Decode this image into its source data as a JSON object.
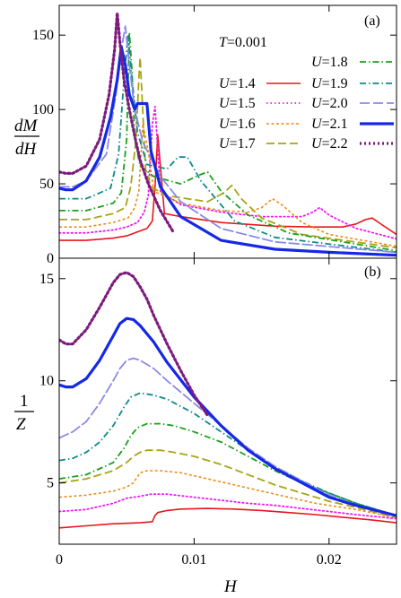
{
  "chart_data": [
    {
      "type": "line",
      "panel_label": "(a)",
      "ylabel_num": "dM",
      "ylabel_den": "dH",
      "xlabel": "",
      "xlim": [
        0,
        0.025
      ],
      "ylim": [
        0,
        170
      ],
      "yticks": [
        0,
        50,
        100,
        150
      ],
      "xticks": [
        0,
        0.01,
        0.02
      ],
      "xtick_labels": [
        "",
        "",
        ""
      ],
      "legend_title": "T=0.001",
      "legend_title_var": "T",
      "legend_title_val": "=0.001",
      "legend_placement": "top-right",
      "series": [
        {
          "name": "U=1.4",
          "var": "U",
          "val": "=1.4",
          "color": "#e8161a",
          "dash": "",
          "width": 1.6,
          "x": [
            0,
            0.002,
            0.004,
            0.005,
            0.0065,
            0.0069,
            0.0071,
            0.0073,
            0.0075,
            0.0078,
            0.009,
            0.012,
            0.016,
            0.019,
            0.021,
            0.022,
            0.0227,
            0.0232,
            0.024,
            0.025
          ],
          "y": [
            12,
            12,
            13.5,
            15,
            20,
            25,
            48,
            83,
            62,
            30,
            28,
            24,
            21.5,
            21,
            21,
            23,
            26,
            27,
            22,
            16
          ]
        },
        {
          "name": "U=1.5",
          "var": "U",
          "val": "=1.5",
          "color": "#f218f2",
          "dash": "1.5,3",
          "width": 1.8,
          "x": [
            0,
            0.002,
            0.004,
            0.005,
            0.0058,
            0.0063,
            0.0066,
            0.0069,
            0.0071,
            0.0075,
            0.009,
            0.012,
            0.015,
            0.018,
            0.0188,
            0.0193,
            0.02,
            0.022,
            0.025
          ],
          "y": [
            17,
            17,
            19,
            21,
            24,
            31,
            42,
            90,
            102,
            45,
            36,
            31,
            28,
            28,
            31,
            34,
            29,
            20,
            13
          ]
        },
        {
          "name": "U=1.6",
          "var": "U",
          "val": "=1.6",
          "color": "#f08a16",
          "dash": "3,2.5",
          "width": 1.6,
          "x": [
            0,
            0.002,
            0.004,
            0.0051,
            0.0056,
            0.0059,
            0.0062,
            0.0066,
            0.007,
            0.009,
            0.012,
            0.014,
            0.015,
            0.0158,
            0.0165,
            0.018,
            0.02,
            0.025
          ],
          "y": [
            21,
            21,
            24,
            27,
            34,
            45,
            90,
            72,
            45,
            37,
            32,
            31,
            34,
            40,
            36,
            24,
            16,
            8
          ]
        },
        {
          "name": "U=1.7",
          "var": "U",
          "val": "=1.7",
          "color": "#a8a414",
          "dash": "9,4",
          "width": 1.8,
          "x": [
            0,
            0.002,
            0.004,
            0.0049,
            0.0053,
            0.0057,
            0.0059,
            0.006,
            0.0064,
            0.0068,
            0.008,
            0.011,
            0.0122,
            0.0128,
            0.0135,
            0.015,
            0.018,
            0.025
          ],
          "y": [
            26,
            26,
            30,
            34,
            48,
            80,
            120,
            135,
            60,
            48,
            42,
            38,
            44,
            49,
            40,
            27,
            16,
            7
          ]
        },
        {
          "name": "U=1.8",
          "var": "U",
          "val": "=1.8",
          "color": "#1aa01a",
          "dash": "7,3,1.5,3",
          "width": 1.8,
          "x": [
            0,
            0.002,
            0.004,
            0.0046,
            0.005,
            0.0052,
            0.0054,
            0.0056,
            0.006,
            0.007,
            0.009,
            0.0104,
            0.011,
            0.012,
            0.014,
            0.017,
            0.025
          ],
          "y": [
            32,
            32,
            37,
            44,
            80,
            152,
            125,
            80,
            62,
            55,
            50,
            56,
            58,
            45,
            29,
            17,
            5
          ]
        },
        {
          "name": "U=1.9",
          "var": "U",
          "val": "=1.9",
          "color": "#0f8a8a",
          "dash": "7,3,1.5,3",
          "width": 1.8,
          "x": [
            0,
            0.002,
            0.0038,
            0.0044,
            0.0048,
            0.0051,
            0.0054,
            0.0058,
            0.0065,
            0.008,
            0.0088,
            0.0095,
            0.0105,
            0.013,
            0.016,
            0.025
          ],
          "y": [
            40,
            40,
            47,
            70,
            120,
            150,
            120,
            85,
            63,
            60,
            68,
            68,
            52,
            25,
            14,
            4
          ]
        },
        {
          "name": "U=2.0",
          "var": "U",
          "val": "=2.0",
          "color": "#8a8ae8",
          "dash": "11,4",
          "width": 1.8,
          "x": [
            0,
            0.001,
            0.002,
            0.0035,
            0.0042,
            0.0046,
            0.0049,
            0.0052,
            0.0056,
            0.0062,
            0.0075,
            0.009,
            0.012,
            0.016,
            0.025
          ],
          "y": [
            48,
            48,
            52,
            70,
            110,
            140,
            156,
            130,
            100,
            78,
            55,
            38,
            20,
            11,
            4
          ]
        },
        {
          "name": "U=2.1",
          "var": "U",
          "val": "=2.1",
          "color": "#1428e6",
          "dash": "",
          "width": 3.2,
          "x": [
            0,
            0.0005,
            0.001,
            0.002,
            0.003,
            0.0038,
            0.0043,
            0.0046,
            0.0049,
            0.0052,
            0.0056,
            0.0058,
            0.0065,
            0.0068,
            0.0075,
            0.009,
            0.012,
            0.016,
            0.02,
            0.025
          ],
          "y": [
            47,
            46,
            46,
            52,
            68,
            95,
            120,
            142,
            130,
            110,
            100,
            104,
            104,
            72,
            48,
            28,
            12,
            6,
            4,
            2
          ]
        },
        {
          "name": "U=2.2",
          "var": "U",
          "val": "=2.2",
          "color": "#7d1a7d",
          "dash": "2,3",
          "width": 3.2,
          "x": [
            0,
            0.0005,
            0.001,
            0.002,
            0.003,
            0.0037,
            0.0041,
            0.0043,
            0.0045,
            0.0048,
            0.0052,
            0.0056,
            0.006,
            0.0066,
            0.0075,
            0.0085
          ],
          "y": [
            58,
            57,
            57,
            62,
            80,
            110,
            140,
            165,
            145,
            120,
            100,
            82,
            66,
            50,
            32,
            17
          ]
        }
      ]
    },
    {
      "type": "line",
      "panel_label": "(b)",
      "ylabel_num": "1",
      "ylabel_den": "Z",
      "xlabel": "H",
      "xlim": [
        0,
        0.025
      ],
      "ylim": [
        2,
        16
      ],
      "yticks": [
        5,
        10,
        15
      ],
      "xticks": [
        0,
        0.01,
        0.02
      ],
      "xtick_labels": [
        "0",
        "0.01",
        "0.02"
      ],
      "series": [
        {
          "name": "U=1.4",
          "color": "#e8161a",
          "dash": "",
          "width": 1.6,
          "x": [
            0,
            0.002,
            0.004,
            0.006,
            0.0069,
            0.0071,
            0.0073,
            0.008,
            0.009,
            0.011,
            0.013,
            0.015,
            0.017,
            0.019,
            0.021,
            0.023,
            0.025
          ],
          "y": [
            2.8,
            2.9,
            3.0,
            3.05,
            3.1,
            3.4,
            3.55,
            3.65,
            3.72,
            3.75,
            3.72,
            3.65,
            3.55,
            3.45,
            3.32,
            3.2,
            3.05
          ]
        },
        {
          "name": "U=1.5",
          "color": "#f218f2",
          "dash": "1.5,3",
          "width": 1.8,
          "x": [
            0,
            0.002,
            0.004,
            0.005,
            0.006,
            0.0068,
            0.008,
            0.01,
            0.012,
            0.014,
            0.016,
            0.018,
            0.02,
            0.022,
            0.025
          ],
          "y": [
            3.6,
            3.7,
            4.0,
            4.25,
            4.35,
            4.45,
            4.45,
            4.3,
            4.15,
            4.0,
            3.9,
            3.75,
            3.6,
            3.45,
            3.25
          ]
        },
        {
          "name": "U=1.6",
          "color": "#f08a16",
          "dash": "3,2.5",
          "width": 1.6,
          "x": [
            0,
            0.002,
            0.004,
            0.005,
            0.0055,
            0.006,
            0.0065,
            0.0075,
            0.009,
            0.011,
            0.013,
            0.015,
            0.017,
            0.019,
            0.022,
            0.025
          ],
          "y": [
            4.3,
            4.4,
            4.6,
            4.8,
            5.0,
            5.5,
            5.6,
            5.6,
            5.5,
            5.2,
            4.9,
            4.6,
            4.3,
            4.0,
            3.7,
            3.3
          ]
        },
        {
          "name": "U=1.7",
          "color": "#a8a414",
          "dash": "9,4",
          "width": 1.8,
          "x": [
            0,
            0.002,
            0.004,
            0.005,
            0.0055,
            0.006,
            0.0065,
            0.0075,
            0.0085,
            0.01,
            0.012,
            0.014,
            0.016,
            0.018,
            0.02,
            0.022,
            0.025
          ],
          "y": [
            5.0,
            5.2,
            5.6,
            6.0,
            6.3,
            6.5,
            6.6,
            6.6,
            6.5,
            6.3,
            5.9,
            5.4,
            4.9,
            4.5,
            4.1,
            3.8,
            3.3
          ]
        },
        {
          "name": "U=1.8",
          "color": "#1aa01a",
          "dash": "7,3,1.5,3",
          "width": 1.8,
          "x": [
            0,
            0.002,
            0.004,
            0.0048,
            0.0053,
            0.0058,
            0.0065,
            0.0075,
            0.0085,
            0.01,
            0.012,
            0.014,
            0.016,
            0.018,
            0.02,
            0.022,
            0.025
          ],
          "y": [
            5.2,
            5.4,
            6.0,
            6.7,
            7.3,
            7.7,
            7.9,
            7.9,
            7.8,
            7.5,
            7.0,
            6.3,
            5.6,
            5.0,
            4.5,
            4.0,
            3.4
          ]
        },
        {
          "name": "U=1.9",
          "color": "#0f8a8a",
          "dash": "7,3,1.5,3",
          "width": 1.8,
          "x": [
            0,
            0.001,
            0.002,
            0.003,
            0.004,
            0.0048,
            0.0053,
            0.006,
            0.007,
            0.008,
            0.01,
            0.012,
            0.014,
            0.016,
            0.018,
            0.02,
            0.022,
            0.025
          ],
          "y": [
            6.1,
            6.2,
            6.5,
            7.0,
            7.8,
            8.7,
            9.2,
            9.4,
            9.3,
            9.1,
            8.4,
            7.5,
            6.6,
            5.8,
            5.1,
            4.5,
            4.0,
            3.4
          ]
        },
        {
          "name": "U=2.0",
          "color": "#8a8ae8",
          "dash": "11,4",
          "width": 1.8,
          "x": [
            0,
            0.001,
            0.002,
            0.003,
            0.004,
            0.0045,
            0.005,
            0.0055,
            0.006,
            0.007,
            0.008,
            0.01,
            0.012,
            0.014,
            0.016,
            0.018,
            0.02,
            0.022,
            0.025
          ],
          "y": [
            7.2,
            7.5,
            8.0,
            8.9,
            10.0,
            10.6,
            11.0,
            11.1,
            11.0,
            10.6,
            10.0,
            8.9,
            7.8,
            6.7,
            5.8,
            5.1,
            4.4,
            3.9,
            3.4
          ]
        },
        {
          "name": "U=2.1",
          "color": "#1428e6",
          "dash": "",
          "width": 3.2,
          "x": [
            0,
            0.0005,
            0.001,
            0.002,
            0.003,
            0.004,
            0.0045,
            0.005,
            0.0055,
            0.006,
            0.007,
            0.008,
            0.01,
            0.012,
            0.014,
            0.016,
            0.018,
            0.02,
            0.022,
            0.025
          ],
          "y": [
            9.8,
            9.7,
            9.7,
            10.1,
            11.0,
            12.2,
            12.8,
            13.05,
            13.0,
            12.7,
            11.9,
            10.9,
            9.2,
            7.8,
            6.6,
            5.7,
            5.0,
            4.3,
            3.9,
            3.4
          ]
        },
        {
          "name": "U=2.2",
          "color": "#7d1a7d",
          "dash": "2,3",
          "width": 3.2,
          "x": [
            0,
            0.0005,
            0.001,
            0.002,
            0.003,
            0.004,
            0.0045,
            0.005,
            0.0055,
            0.006,
            0.0065,
            0.007,
            0.008,
            0.009,
            0.01,
            0.011
          ],
          "y": [
            12.0,
            11.8,
            11.8,
            12.5,
            13.6,
            14.8,
            15.2,
            15.3,
            15.1,
            14.6,
            14.0,
            13.2,
            11.8,
            10.5,
            9.3,
            8.3
          ]
        }
      ]
    }
  ]
}
